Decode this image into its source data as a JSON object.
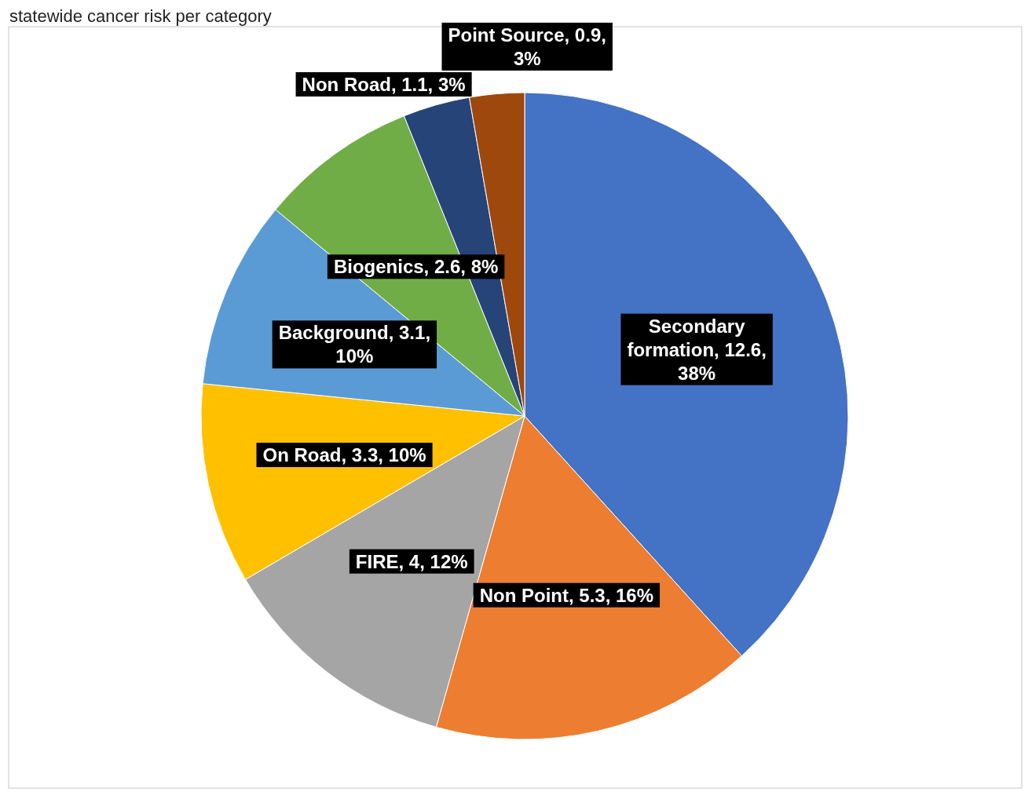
{
  "chart_data": {
    "type": "pie",
    "title": "statewide cancer risk per category",
    "categories": [
      "Secondary formation",
      "Non Point",
      "FIRE",
      "On Road",
      "Background",
      "Biogenics",
      "Non Road",
      "Point Source"
    ],
    "values": [
      12.6,
      5.3,
      4,
      3.3,
      3.1,
      2.6,
      1.1,
      0.9
    ],
    "colors": [
      "#4472c4",
      "#ed7d31",
      "#a5a5a5",
      "#ffc000",
      "#5b9bd5",
      "#70ad47",
      "#264478",
      "#9e480e"
    ],
    "value_labels": [
      ", 12.6, 38%",
      ", 5.3, 16%",
      ", 4, 12%",
      ", 3.3, 10%",
      ", 3.1, 10%",
      ", 2.6, 8%",
      ", 1.1, 3%",
      ", 0.9, 3%"
    ],
    "legend": false
  }
}
